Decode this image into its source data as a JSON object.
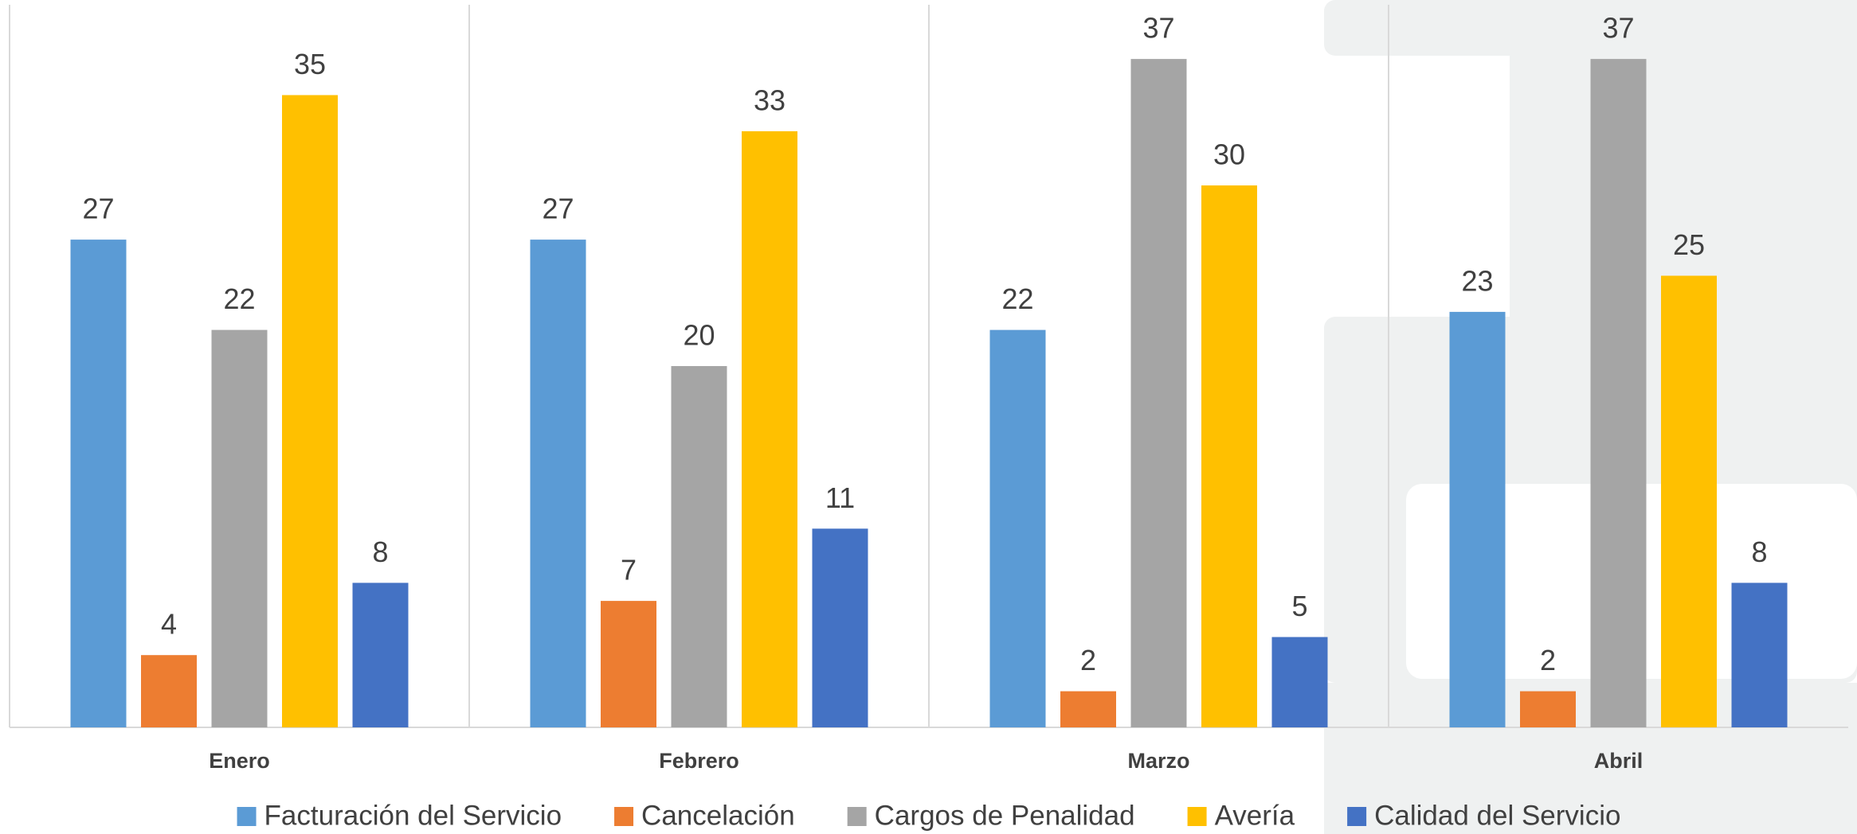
{
  "chart_data": {
    "type": "bar",
    "categories": [
      "Enero",
      "Febrero",
      "Marzo",
      "Abril"
    ],
    "series": [
      {
        "name": "Facturación del Servicio",
        "color": "#5b9bd5",
        "values": [
          27,
          27,
          22,
          23
        ]
      },
      {
        "name": "Cancelación",
        "color": "#ed7d31",
        "values": [
          4,
          7,
          2,
          2
        ]
      },
      {
        "name": "Cargos de Penalidad",
        "color": "#a5a5a5",
        "values": [
          22,
          20,
          37,
          37
        ]
      },
      {
        "name": "Avería",
        "color": "#ffc000",
        "values": [
          35,
          33,
          30,
          25
        ]
      },
      {
        "name": "Calidad del Servicio",
        "color": "#4472c4",
        "values": [
          8,
          11,
          5,
          8
        ]
      }
    ],
    "ylim": [
      0,
      40
    ],
    "legend": "bottom"
  }
}
